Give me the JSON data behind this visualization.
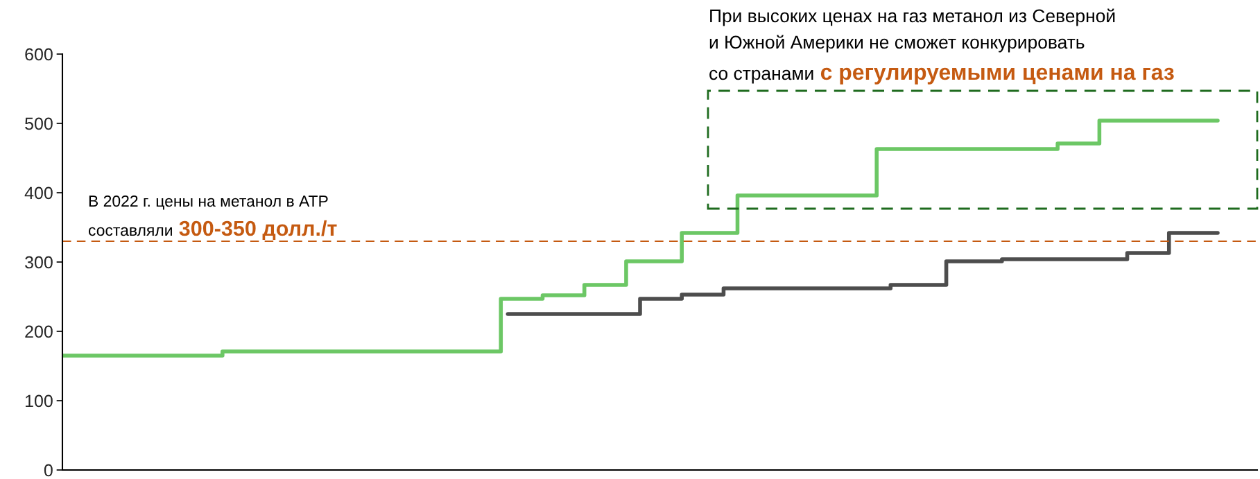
{
  "chart_data": {
    "type": "step",
    "categories": [
      null,
      null,
      null,
      null,
      null,
      null,
      null,
      null,
      null,
      null,
      null,
      null,
      null,
      null,
      null,
      null,
      null,
      null,
      null,
      null,
      null,
      null,
      null,
      null,
      null,
      null,
      null,
      null,
      null,
      null,
      null,
      null,
      null,
      null,
      null,
      null,
      null,
      null,
      null,
      null,
      null,
      null,
      null,
      null,
      null,
      null,
      null,
      null,
      null,
      null,
      null,
      null,
      null,
      null,
      null,
      null,
      null,
      null,
      null,
      null,
      null,
      null,
      null,
      null,
      null,
      null,
      null,
      null,
      null,
      null,
      null,
      null,
      null,
      null,
      null,
      null,
      null,
      null,
      null,
      null,
      null,
      null,
      null,
      null
    ],
    "series": [
      {
        "color": "#6cc765",
        "values": [
          165,
          165,
          165,
          165,
          165,
          165,
          165,
          165,
          165,
          165,
          165,
          165,
          171,
          171,
          171,
          171,
          171,
          171,
          171,
          171,
          171,
          171,
          171,
          171,
          171,
          171,
          171,
          171,
          171,
          171,
          171,
          171,
          247,
          247,
          247,
          252,
          252,
          252,
          267,
          267,
          267,
          301,
          301,
          301,
          301,
          342,
          342,
          342,
          342,
          396,
          396,
          396,
          396,
          396,
          396,
          396,
          396,
          396,
          396,
          463,
          463,
          463,
          463,
          463,
          463,
          463,
          463,
          463,
          463,
          463,
          463,
          463,
          471,
          471,
          471,
          504,
          504,
          504,
          504,
          504,
          504,
          504,
          504,
          504
        ]
      },
      {
        "color": "#4d4d4d",
        "values": [
          null,
          null,
          null,
          null,
          null,
          null,
          null,
          null,
          null,
          null,
          null,
          null,
          null,
          null,
          null,
          null,
          null,
          null,
          null,
          null,
          null,
          null,
          null,
          null,
          null,
          null,
          null,
          null,
          null,
          null,
          null,
          null,
          225,
          225,
          225,
          225,
          225,
          225,
          225,
          225,
          225,
          225,
          247,
          247,
          247,
          253,
          253,
          253,
          262,
          262,
          262,
          262,
          262,
          262,
          262,
          262,
          262,
          262,
          262,
          262,
          267,
          267,
          267,
          267,
          301,
          301,
          301,
          301,
          304,
          304,
          304,
          304,
          304,
          304,
          304,
          304,
          304,
          313,
          313,
          313,
          342,
          342,
          342,
          342
        ]
      }
    ],
    "ylim": [
      0,
      600
    ],
    "yticks": [
      0,
      100,
      200,
      300,
      400,
      500,
      600
    ],
    "ref_lines": [
      {
        "axis": "y",
        "value": 330,
        "color": "#c55a11",
        "line_style": "dashed"
      }
    ],
    "annotations": [
      "В 2022 г. цены на метанол в АТР",
      "составляли",
      "300-350 долл./т",
      "При высоких ценах на газ метанол из Северной",
      "и Южной Америки не сможет конкурировать",
      "со странами",
      "с регулируемыми ценами на газ"
    ],
    "grid": false
  }
}
